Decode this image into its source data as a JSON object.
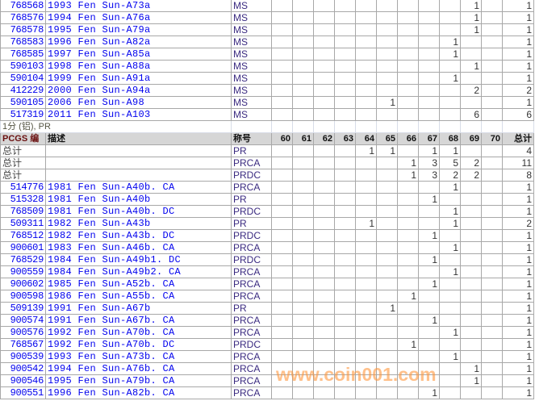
{
  "grade_columns": [
    "60",
    "61",
    "62",
    "63",
    "64",
    "65",
    "66",
    "67",
    "68",
    "69",
    "70"
  ],
  "total_header": "总计",
  "section1_rows": [
    {
      "id": "768568",
      "desc": "1993 Fen Sun-A73a",
      "grade": "MS",
      "counts": {
        "69": "1"
      },
      "total": "1"
    },
    {
      "id": "768576",
      "desc": "1994 Fen Sun-A76a",
      "grade": "MS",
      "counts": {
        "69": "1"
      },
      "total": "1"
    },
    {
      "id": "768578",
      "desc": "1995 Fen Sun-A79a",
      "grade": "MS",
      "counts": {
        "69": "1"
      },
      "total": "1"
    },
    {
      "id": "768583",
      "desc": "1996 Fen Sun-A82a",
      "grade": "MS",
      "counts": {
        "68": "1"
      },
      "total": "1"
    },
    {
      "id": "768585",
      "desc": "1997 Fen Sun-A85a",
      "grade": "MS",
      "counts": {
        "68": "1"
      },
      "total": "1"
    },
    {
      "id": "590103",
      "desc": "1998 Fen Sun-A88a",
      "grade": "MS",
      "counts": {
        "69": "1"
      },
      "total": "1"
    },
    {
      "id": "590104",
      "desc": "1999 Fen Sun-A91a",
      "grade": "MS",
      "counts": {
        "68": "1"
      },
      "total": "1"
    },
    {
      "id": "412229",
      "desc": "2000 Fen Sun-A94a",
      "grade": "MS",
      "counts": {
        "69": "2"
      },
      "total": "2"
    },
    {
      "id": "590105",
      "desc": "2006 Fen Sun-A98",
      "grade": "MS",
      "counts": {
        "65": "1"
      },
      "total": "1"
    },
    {
      "id": "517319",
      "desc": "2011 Fen Sun-A103",
      "grade": "MS",
      "counts": {
        "69": "6"
      },
      "total": "6"
    }
  ],
  "section2_title": "1分 (铝), PR",
  "header": {
    "pcgs": "PCGS 编",
    "desc": "描述",
    "grade": "称号"
  },
  "section2_rows": [
    {
      "label": "总计",
      "grade": "PR",
      "counts": {
        "64": "1",
        "65": "1",
        "67": "1",
        "68": "1"
      },
      "total": "4"
    },
    {
      "label": "总计",
      "grade": "PRCA",
      "counts": {
        "66": "1",
        "67": "3",
        "68": "5",
        "69": "2"
      },
      "total": "11"
    },
    {
      "label": "总计",
      "grade": "PRDC",
      "counts": {
        "66": "1",
        "67": "3",
        "68": "2",
        "69": "2"
      },
      "total": "8"
    },
    {
      "id": "514776",
      "desc": "1981 Fen Sun-A40b. CA",
      "grade": "PRCA",
      "counts": {
        "68": "1"
      },
      "total": "1"
    },
    {
      "id": "515328",
      "desc": "1981 Fen Sun-A40b",
      "grade": "PR",
      "counts": {
        "67": "1"
      },
      "total": "1"
    },
    {
      "id": "768509",
      "desc": "1981 Fen Sun-A40b. DC",
      "grade": "PRDC",
      "counts": {
        "68": "1"
      },
      "total": "1"
    },
    {
      "id": "509311",
      "desc": "1982 Fen Sun-A43b",
      "grade": "PR",
      "counts": {
        "64": "1",
        "68": "1"
      },
      "total": "2"
    },
    {
      "id": "768512",
      "desc": "1982 Fen Sun-A43b. DC",
      "grade": "PRDC",
      "counts": {
        "67": "1"
      },
      "total": "1"
    },
    {
      "id": "900601",
      "desc": "1983 Fen Sun-A46b. CA",
      "grade": "PRCA",
      "counts": {
        "68": "1"
      },
      "total": "1"
    },
    {
      "id": "768529",
      "desc": "1984 Fen Sun-A49b1. DC",
      "grade": "PRDC",
      "counts": {
        "67": "1"
      },
      "total": "1"
    },
    {
      "id": "900559",
      "desc": "1984 Fen Sun-A49b2. CA",
      "grade": "PRCA",
      "counts": {
        "68": "1"
      },
      "total": "1"
    },
    {
      "id": "900602",
      "desc": "1985 Fen Sun-A52b. CA",
      "grade": "PRCA",
      "counts": {
        "67": "1"
      },
      "total": "1"
    },
    {
      "id": "900598",
      "desc": "1986 Fen Sun-A55b. CA",
      "grade": "PRCA",
      "counts": {
        "66": "1"
      },
      "total": "1"
    },
    {
      "id": "509139",
      "desc": "1991 Fen Sun-A67b",
      "grade": "PR",
      "counts": {
        "65": "1"
      },
      "total": "1"
    },
    {
      "id": "900574",
      "desc": "1991 Fen Sun-A67b. CA",
      "grade": "PRCA",
      "counts": {
        "67": "1"
      },
      "total": "1"
    },
    {
      "id": "900576",
      "desc": "1992 Fen Sun-A70b. CA",
      "grade": "PRCA",
      "counts": {
        "68": "1"
      },
      "total": "1"
    },
    {
      "id": "768567",
      "desc": "1992 Fen Sun-A70b. DC",
      "grade": "PRDC",
      "counts": {
        "66": "1"
      },
      "total": "1"
    },
    {
      "id": "900539",
      "desc": "1993 Fen Sun-A73b. CA",
      "grade": "PRCA",
      "counts": {
        "68": "1"
      },
      "total": "1"
    },
    {
      "id": "900542",
      "desc": "1994 Fen Sun-A76b. CA",
      "grade": "PRCA",
      "counts": {
        "69": "1"
      },
      "total": "1"
    },
    {
      "id": "900546",
      "desc": "1995 Fen Sun-A79b. CA",
      "grade": "PRCA",
      "counts": {
        "69": "1"
      },
      "total": "1"
    },
    {
      "id": "900551",
      "desc": "1996 Fen Sun-A82b. CA",
      "grade": "PRCA",
      "counts": {
        "67": "1"
      },
      "total": "1"
    }
  ],
  "watermark": "www.coin001.com",
  "colors": {
    "link": "#0000ee",
    "grid": "#a8a8a8",
    "header_bg": "#d6d6d6",
    "watermark": "#ff963c"
  }
}
